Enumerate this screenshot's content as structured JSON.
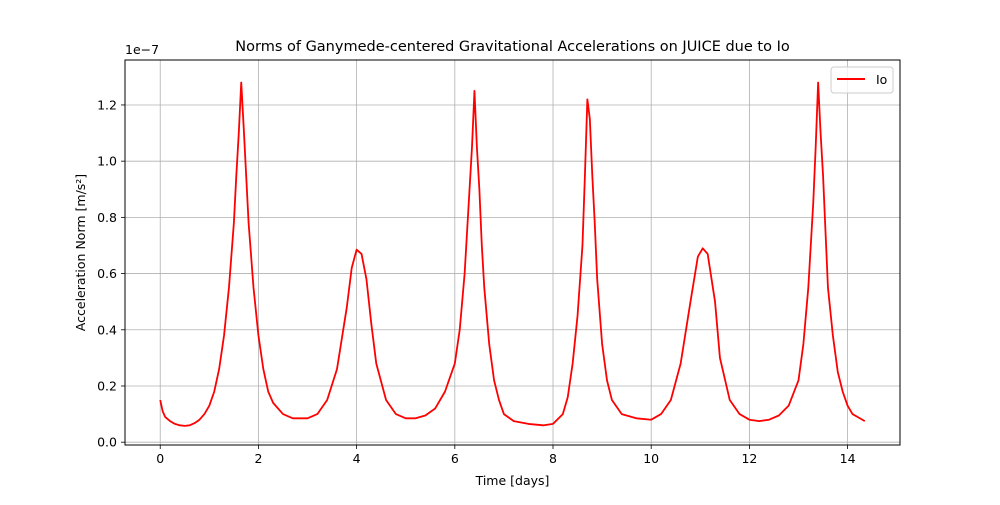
{
  "chart_data": {
    "type": "line",
    "title": "Norms of Ganymede-centered Gravitational Accelerations on JUICE due to Io",
    "xlabel": "Time [days]",
    "ylabel": "Acceleration Norm [m/s²]",
    "y_offset_label": "1e−7",
    "xlim": [
      -0.7175,
      15.0675
    ],
    "ylim": [
      -0.01,
      1.36
    ],
    "xticks": [
      0,
      2,
      4,
      6,
      8,
      10,
      12,
      14
    ],
    "xtick_labels": [
      "0",
      "2",
      "4",
      "6",
      "8",
      "10",
      "12",
      "14"
    ],
    "yticks": [
      0.0,
      0.2,
      0.4,
      0.6,
      0.8,
      1.0,
      1.2
    ],
    "ytick_labels": [
      "0.0",
      "0.2",
      "0.4",
      "0.6",
      "0.8",
      "1.0",
      "1.2"
    ],
    "grid": true,
    "legend_position": "upper right",
    "y_scale_factor": "1e-7",
    "series": [
      {
        "name": "Io",
        "color": "#ff0000",
        "x": [
          0.0,
          0.05,
          0.1,
          0.2,
          0.3,
          0.4,
          0.5,
          0.6,
          0.7,
          0.8,
          0.9,
          1.0,
          1.1,
          1.2,
          1.3,
          1.4,
          1.5,
          1.55,
          1.6,
          1.65,
          1.7,
          1.75,
          1.8,
          1.9,
          2.0,
          2.1,
          2.2,
          2.3,
          2.5,
          2.7,
          3.0,
          3.2,
          3.4,
          3.6,
          3.8,
          3.9,
          4.0,
          4.1,
          4.2,
          4.3,
          4.4,
          4.6,
          4.8,
          5.0,
          5.2,
          5.4,
          5.6,
          5.8,
          6.0,
          6.1,
          6.2,
          6.3,
          6.35,
          6.4,
          6.45,
          6.5,
          6.55,
          6.6,
          6.7,
          6.8,
          6.9,
          7.0,
          7.2,
          7.5,
          7.8,
          8.0,
          8.2,
          8.3,
          8.4,
          8.5,
          8.6,
          8.65,
          8.7,
          8.75,
          8.8,
          8.85,
          8.9,
          9.0,
          9.1,
          9.2,
          9.4,
          9.7,
          10.0,
          10.2,
          10.4,
          10.6,
          10.8,
          10.95,
          11.05,
          11.15,
          11.3,
          11.4,
          11.6,
          11.8,
          12.0,
          12.2,
          12.4,
          12.6,
          12.8,
          13.0,
          13.1,
          13.2,
          13.3,
          13.35,
          13.4,
          13.45,
          13.5,
          13.55,
          13.6,
          13.7,
          13.8,
          13.9,
          14.0,
          14.1,
          14.2,
          14.35
        ],
        "y": [
          0.15,
          0.11,
          0.09,
          0.075,
          0.065,
          0.06,
          0.058,
          0.06,
          0.068,
          0.08,
          0.1,
          0.13,
          0.18,
          0.26,
          0.38,
          0.55,
          0.78,
          0.95,
          1.1,
          1.28,
          1.12,
          0.95,
          0.78,
          0.55,
          0.38,
          0.26,
          0.18,
          0.14,
          0.1,
          0.085,
          0.085,
          0.1,
          0.15,
          0.26,
          0.48,
          0.62,
          0.685,
          0.67,
          0.58,
          0.42,
          0.28,
          0.15,
          0.1,
          0.085,
          0.085,
          0.095,
          0.12,
          0.18,
          0.28,
          0.4,
          0.6,
          0.9,
          1.05,
          1.25,
          1.05,
          0.9,
          0.7,
          0.55,
          0.35,
          0.22,
          0.15,
          0.1,
          0.075,
          0.065,
          0.06,
          0.065,
          0.1,
          0.16,
          0.28,
          0.45,
          0.7,
          0.95,
          1.22,
          1.15,
          0.95,
          0.78,
          0.58,
          0.35,
          0.22,
          0.15,
          0.1,
          0.085,
          0.08,
          0.1,
          0.15,
          0.28,
          0.5,
          0.66,
          0.69,
          0.67,
          0.5,
          0.3,
          0.15,
          0.1,
          0.08,
          0.075,
          0.08,
          0.095,
          0.13,
          0.22,
          0.35,
          0.55,
          0.85,
          1.05,
          1.28,
          1.1,
          0.95,
          0.75,
          0.55,
          0.38,
          0.25,
          0.18,
          0.13,
          0.1,
          0.09,
          0.075
        ]
      }
    ]
  }
}
